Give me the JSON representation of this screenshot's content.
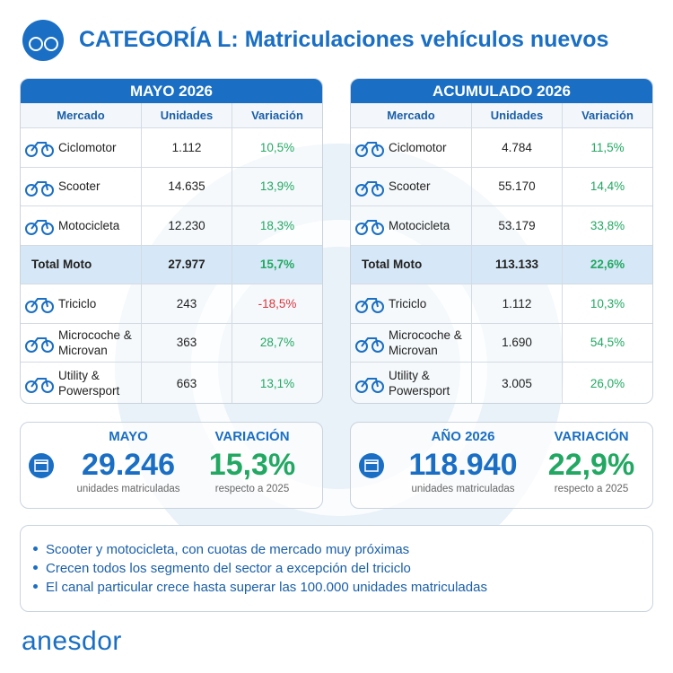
{
  "header": {
    "title": "CATEGORÍA L: Matriculaciones vehículos nuevos"
  },
  "tables": [
    {
      "title": "MAYO 2026",
      "columns": [
        "Mercado",
        "Unidades",
        "Variación"
      ],
      "rows": [
        [
          "Ciclomotor",
          "1.112",
          "10,5%"
        ],
        [
          "Scooter",
          "14.635",
          "13,9%"
        ],
        [
          "Motocicleta",
          "12.230",
          "18,3%"
        ],
        [
          "Total Moto",
          "27.977",
          "15,7%"
        ],
        [
          "Triciclo",
          "243",
          "-18,5%"
        ],
        [
          "Microcoche & Microvan",
          "363",
          "28,7%"
        ],
        [
          "Utility & Powersport",
          "663",
          "13,1%"
        ]
      ]
    },
    {
      "title": "ACUMULADO 2026",
      "columns": [
        "Mercado",
        "Unidades",
        "Variación"
      ],
      "rows": [
        [
          "Ciclomotor",
          "4.784",
          "11,5%"
        ],
        [
          "Scooter",
          "55.170",
          "14,4%"
        ],
        [
          "Motocicleta",
          "53.179",
          "33,8%"
        ],
        [
          "Total Moto",
          "113.133",
          "22,6%"
        ],
        [
          "Triciclo",
          "1.112",
          "10,3%"
        ],
        [
          "Microcoche & Microvan",
          "1.690",
          "54,5%"
        ],
        [
          "Utility & Powersport",
          "3.005",
          "26,0%"
        ]
      ]
    }
  ],
  "summaries": [
    {
      "period_label": "MAYO",
      "period_value": "29.246",
      "period_caption": "unidades matriculadas",
      "change_label": "VARIACIÓN",
      "change_value": "15,3%",
      "change_caption": "respecto a 2025"
    },
    {
      "period_label": "AÑO 2026",
      "period_value": "118.940",
      "period_caption": "unidades matriculadas",
      "change_label": "VARIACIÓN",
      "change_value": "22,9%",
      "change_caption": "respecto a 2025"
    }
  ],
  "bullets": [
    "Scooter y motocicleta, con cuotas de mercado muy próximas",
    "Crecen todos los segmento del sector a excepción del triciclo",
    "El canal particular crece hasta superar las 100.000 unidades matriculadas"
  ],
  "logo": "anesdor"
}
